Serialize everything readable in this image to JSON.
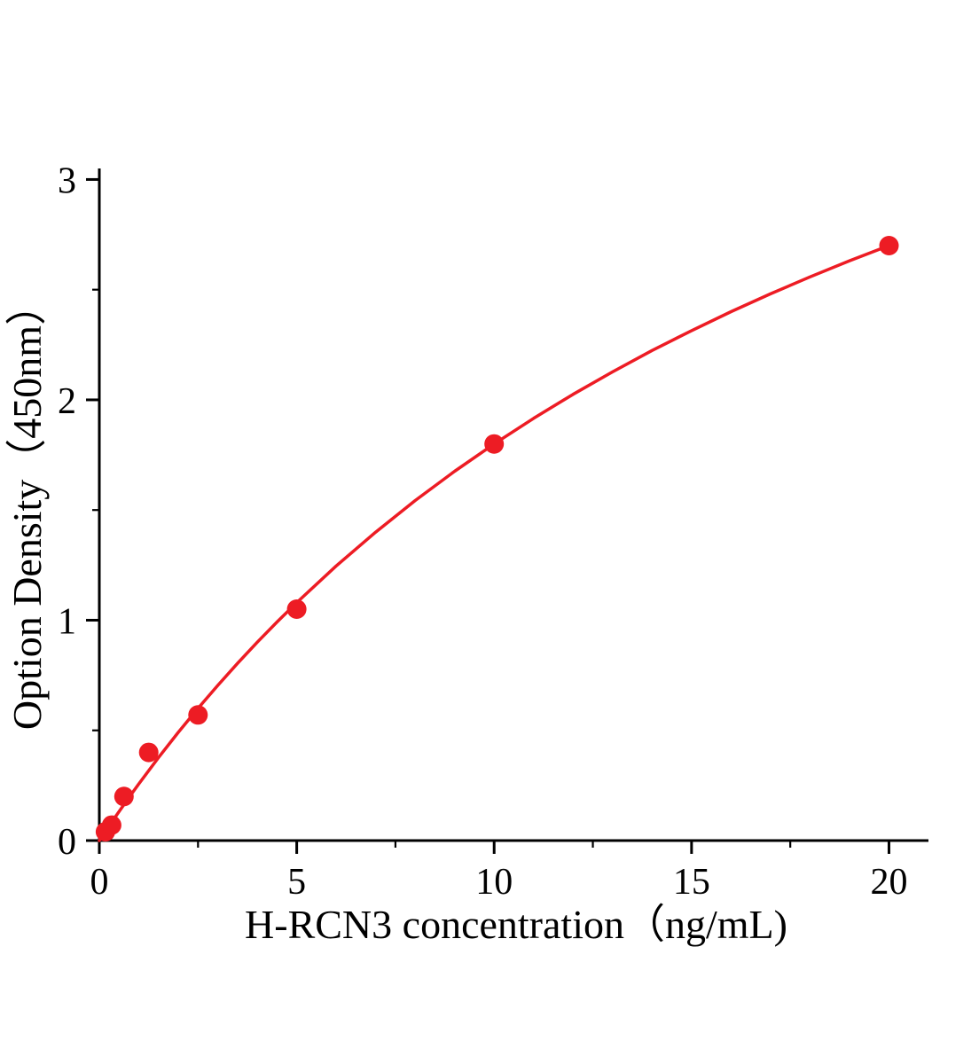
{
  "page": {
    "background": "#ffffff"
  },
  "chart_data": {
    "type": "scatter",
    "title": "",
    "xlabel": "H-RCN3 concentration（ng/mL)",
    "ylabel": "Option Density（450nm）",
    "xlim": [
      0,
      21
    ],
    "ylim": [
      0,
      3.05
    ],
    "x_major_ticks": [
      0,
      5,
      10,
      15,
      20
    ],
    "x_minor_ticks": [
      2.5,
      7.5,
      12.5,
      17.5
    ],
    "y_major_ticks": [
      0,
      1,
      2,
      3
    ],
    "y_minor_ticks": [
      0.5,
      1.5,
      2.5
    ],
    "axis_color": "#000000",
    "grid": false,
    "legend": "none",
    "series": [
      {
        "name": "standard-curve-fit",
        "type": "line",
        "color": "#ed1c24",
        "width": 3.5,
        "x": [
          0,
          0.25,
          0.5,
          0.75,
          1,
          1.5,
          2,
          2.5,
          3,
          3.5,
          4,
          4.5,
          5,
          6,
          7,
          8,
          9,
          10,
          11,
          12,
          13,
          14,
          15,
          16,
          17,
          18,
          19,
          20
        ],
        "y": [
          0,
          0.067,
          0.132,
          0.195,
          0.257,
          0.377,
          0.491,
          0.6,
          0.704,
          0.804,
          0.9,
          0.992,
          1.08,
          1.246,
          1.4,
          1.543,
          1.676,
          1.8,
          1.916,
          2.025,
          2.127,
          2.224,
          2.314,
          2.4,
          2.481,
          2.558,
          2.631,
          2.7
        ],
        "fit_model": "y = 5.4 * x / (20 + x)"
      },
      {
        "name": "standard-data-points",
        "type": "scatter",
        "color": "#ed1c24",
        "marker_radius": 11,
        "x": [
          0.156,
          0.313,
          0.625,
          1.25,
          2.5,
          5,
          10,
          20
        ],
        "y": [
          0.04,
          0.07,
          0.2,
          0.4,
          0.57,
          1.05,
          1.8,
          2.7
        ]
      }
    ]
  }
}
